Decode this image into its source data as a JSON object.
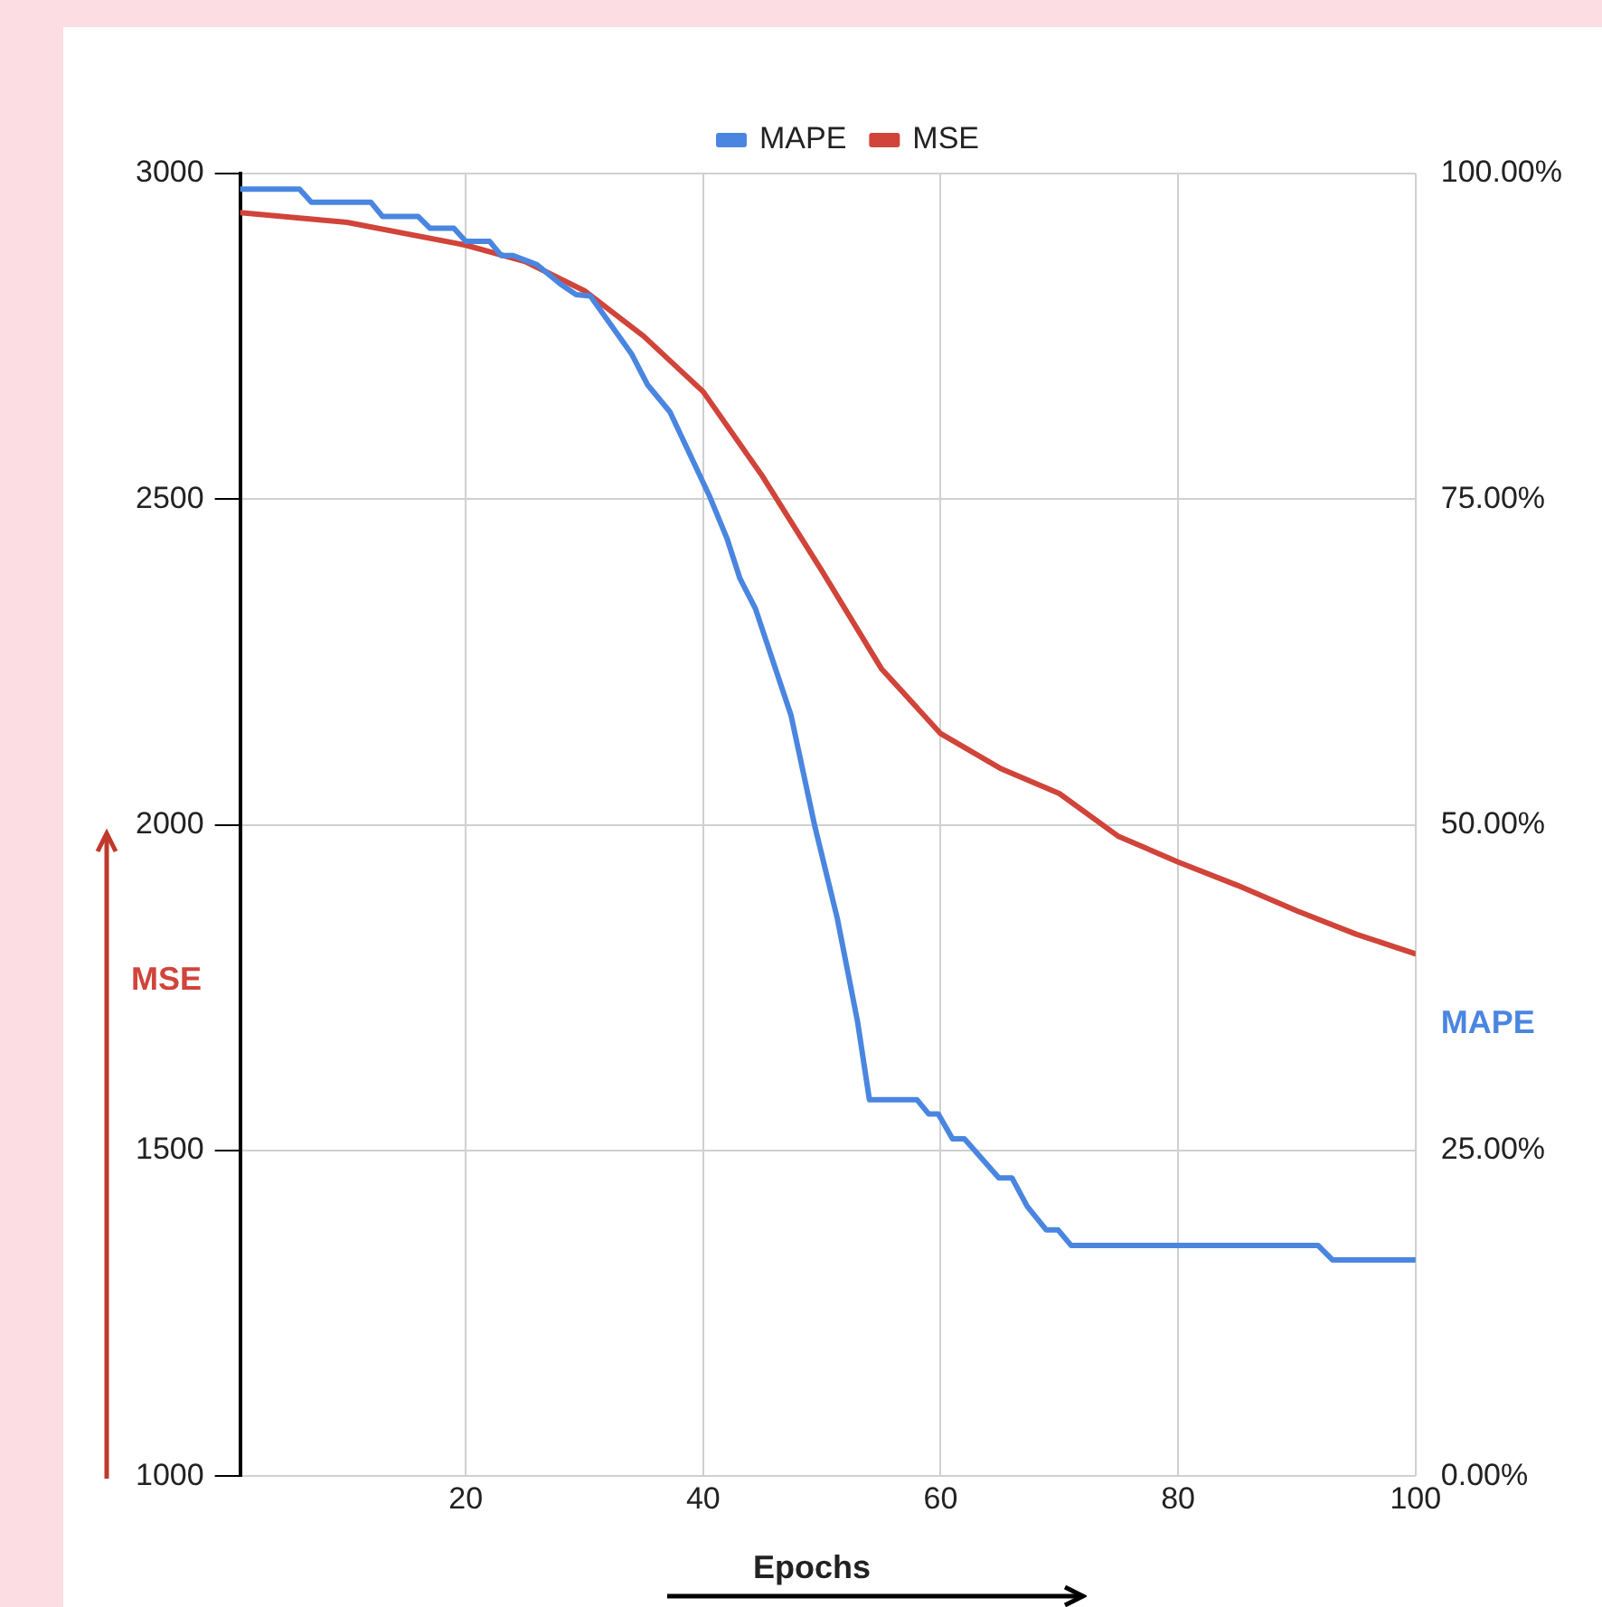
{
  "chart_data": {
    "type": "line",
    "xlabel": "Epochs",
    "ylabel": "MSE",
    "y2label": "MAPE",
    "legend": "top",
    "grid": true,
    "marker": "none",
    "line_style": "solid",
    "xlim": [
      1,
      100
    ],
    "xticks": [
      20,
      40,
      60,
      80,
      100
    ],
    "ylim": [
      1000,
      3000
    ],
    "yticks": [
      1000,
      1500,
      2000,
      2500,
      3000
    ],
    "y2lim": [
      0,
      100
    ],
    "y2ticks": [
      {
        "value": 0,
        "label": "0.00%"
      },
      {
        "value": 25,
        "label": "25.00%"
      },
      {
        "value": 50,
        "label": "50.00%"
      },
      {
        "value": 75,
        "label": "75.00%"
      },
      {
        "value": 100,
        "label": "100.00%"
      }
    ],
    "series": [
      {
        "name": "MAPE",
        "color": "#4a86e0",
        "axis": "y2",
        "x": [
          1,
          6,
          7,
          12,
          13,
          16,
          17,
          19,
          20,
          22,
          23,
          24,
          26,
          28,
          29.3,
          30.5,
          34,
          35.3,
          37.2,
          40.5,
          42,
          43.1,
          44.4,
          47.4,
          49.4,
          51.3,
          53,
          54,
          58,
          59,
          59.8,
          61,
          62,
          64.9,
          66,
          67.3,
          68.9,
          69.9,
          71,
          91.8,
          93,
          100
        ],
        "values": [
          98.8,
          98.8,
          97.8,
          97.8,
          96.7,
          96.7,
          95.8,
          95.8,
          94.8,
          94.8,
          93.7,
          93.7,
          93,
          91.5,
          90.7,
          90.6,
          86.1,
          83.8,
          81.7,
          75.3,
          72,
          68.9,
          66.6,
          58.4,
          49.9,
          42.8,
          34.9,
          28.9,
          28.9,
          27.8,
          27.8,
          25.9,
          25.9,
          22.9,
          22.9,
          20.7,
          18.9,
          18.9,
          17.7,
          17.7,
          16.6,
          16.6
        ]
      },
      {
        "name": "MSE",
        "color": "#d0443a",
        "x": [
          1,
          10,
          20,
          25,
          30,
          35,
          40,
          45,
          50,
          55,
          60,
          65,
          70,
          75,
          80,
          85,
          90,
          95,
          100
        ],
        "values": [
          2940,
          2925,
          2890,
          2865,
          2820,
          2750,
          2665,
          2535,
          2390,
          2240,
          2140,
          2087,
          2048,
          1982,
          1943,
          1907,
          1868,
          1832,
          1802
        ]
      }
    ]
  }
}
